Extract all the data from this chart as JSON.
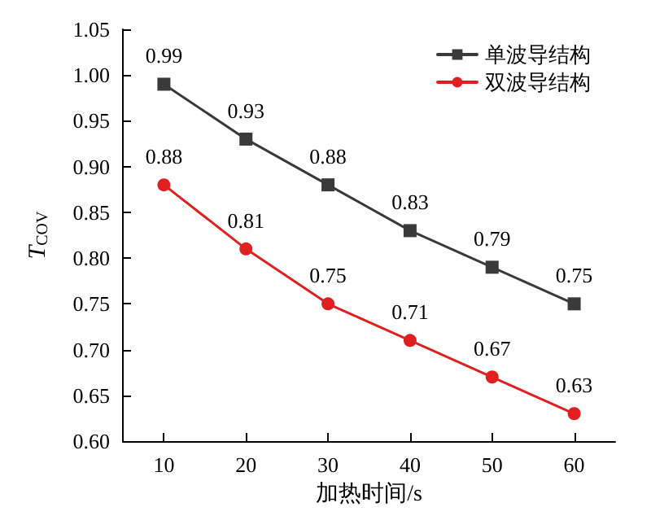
{
  "chart_data": {
    "type": "line",
    "xlabel": "加热时间/s",
    "ylabel": "T$_{COV}$",
    "x": [
      10,
      20,
      30,
      40,
      50,
      60
    ],
    "series": [
      {
        "name": "单波导结构",
        "color": "#3a3a3a",
        "marker": "square",
        "values": [
          0.99,
          0.93,
          0.88,
          0.83,
          0.79,
          0.75
        ]
      },
      {
        "name": "双波导结构",
        "color": "#e02020",
        "marker": "circle",
        "values": [
          0.88,
          0.81,
          0.75,
          0.71,
          0.67,
          0.63
        ]
      }
    ],
    "xlim": [
      5,
      65
    ],
    "xticks": [
      10,
      20,
      30,
      40,
      50,
      60
    ],
    "ylim": [
      0.6,
      1.05
    ],
    "yticks": [
      {
        "value": 0.6,
        "label": "0.60"
      },
      {
        "value": 0.65,
        "label": "0.65"
      },
      {
        "value": 0.7,
        "label": "0.70"
      },
      {
        "value": 0.75,
        "label": "0.75"
      },
      {
        "value": 0.8,
        "label": "0.80"
      },
      {
        "value": 0.85,
        "label": "0.85"
      },
      {
        "value": 0.9,
        "label": "0.90"
      },
      {
        "value": 0.95,
        "label": "0.95"
      },
      {
        "value": 1.0,
        "label": "1.00"
      },
      {
        "value": 1.05,
        "label": "1.05"
      }
    ],
    "data_labels": true,
    "legend": "top right",
    "grid": false,
    "line_style": "solid"
  }
}
